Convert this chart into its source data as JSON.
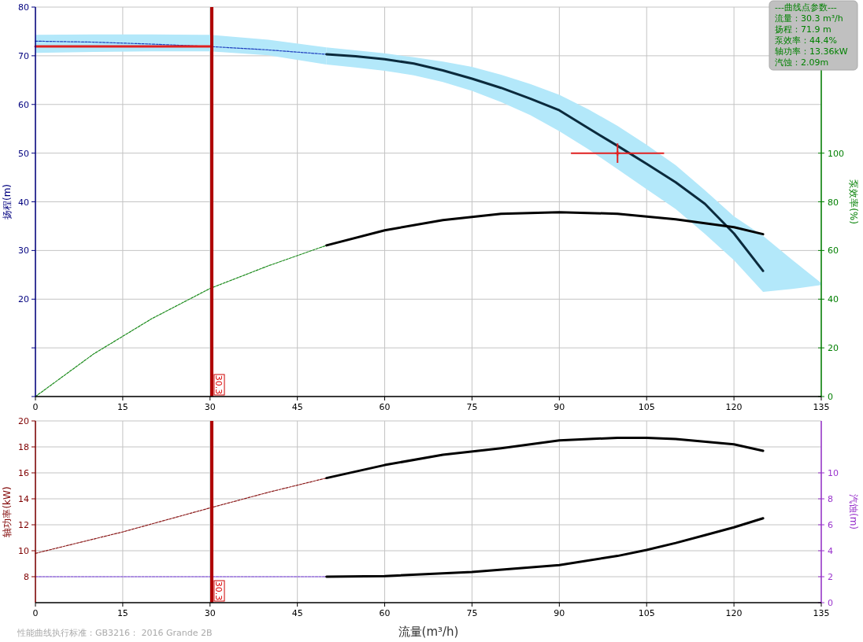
{
  "chart_data": [
    {
      "type": "line",
      "ylabel": "扬程(m)",
      "y2label": "泵效率(%)",
      "grid": true,
      "xlim": [
        0,
        135
      ],
      "xticks": [
        0,
        15,
        30,
        45,
        60,
        75,
        90,
        105,
        120,
        135
      ],
      "ylim": [
        0,
        80
      ],
      "yticks": [
        {
          "value": 0,
          "label": null
        },
        {
          "value": 10,
          "label": null
        },
        20,
        30,
        40,
        50,
        60,
        70,
        80
      ],
      "y2lim": [
        0,
        160
      ],
      "y2ticks": [
        0,
        20,
        40,
        60,
        80,
        100
      ],
      "series": [
        {
          "type": "line",
          "color": "#1f3fbf",
          "line_style": "dashed",
          "x": [
            0,
            10,
            20,
            30,
            40,
            50
          ],
          "values": [
            73.0,
            72.8,
            72.4,
            71.9,
            71.2,
            70.3
          ],
          "lower": [
            70.6,
            70.8,
            70.9,
            70.9,
            70.1,
            68.2
          ],
          "upper": [
            74.3,
            74.4,
            74.4,
            74.3,
            73.3,
            71.7
          ]
        },
        {
          "type": "line",
          "color": "#0b2a3c",
          "line_style": "solid",
          "x": [
            50,
            55,
            60,
            65,
            70,
            75,
            80,
            85,
            90,
            95,
            100,
            105,
            110,
            115,
            120,
            125,
            130,
            135
          ],
          "values": [
            70.3,
            69.9,
            69.3,
            68.4,
            67.0,
            65.3,
            63.4,
            61.2,
            58.8,
            55.1,
            51.5,
            47.8,
            44.0,
            39.6,
            33.5,
            25.8,
            null,
            null
          ],
          "lower": [
            68.2,
            67.6,
            66.9,
            66.0,
            64.6,
            62.8,
            60.5,
            57.8,
            54.5,
            50.8,
            46.7,
            42.6,
            38.5,
            33.4,
            28.0,
            21.5,
            22.1,
            22.9
          ],
          "upper": [
            71.7,
            71.1,
            70.5,
            69.7,
            68.8,
            67.7,
            66.1,
            64.2,
            62.0,
            59.0,
            55.6,
            51.7,
            47.5,
            42.4,
            37.0,
            33.0,
            28.1,
            23.3
          ]
        },
        {
          "type": "line",
          "axis": "y2",
          "color": "#1a8a1a",
          "line_style": "dashed",
          "x": [
            0,
            10,
            20,
            30,
            40,
            50
          ],
          "values": [
            0,
            17.5,
            32.0,
            44.4,
            53.7,
            62.1
          ]
        },
        {
          "type": "line",
          "axis": "y2",
          "color": "#000000",
          "line_style": "solid",
          "x": [
            50,
            60,
            70,
            80,
            90,
            100,
            110,
            120,
            125
          ],
          "values": [
            62.1,
            68.3,
            72.5,
            75.1,
            75.7,
            75.1,
            72.8,
            69.6,
            66.7
          ]
        },
        {
          "type": "line",
          "color": "#e02020",
          "line_style": "solid",
          "x": [
            0,
            30.3
          ],
          "values": [
            71.9,
            71.9
          ]
        },
        {
          "type": "scatter",
          "color": "#e02020",
          "marker": "cross",
          "x": [
            100
          ],
          "values": [
            50
          ],
          "errors": [
            2
          ],
          "xerrors": [
            8
          ]
        }
      ],
      "ref_lines": [
        {
          "axis": "x",
          "value": 30.3,
          "label": "30.3",
          "color": "#b00000"
        }
      ],
      "annotations": [
        "---曲线点参数---",
        "流量：30.3 m³/h",
        "扬程：71.9 m",
        "泵效率：44.4%",
        "轴功率：13.36kW",
        "汽蚀：2.09m"
      ]
    },
    {
      "type": "line",
      "xlabel": "流量(m³/h)",
      "ylabel": "轴功率(kW)",
      "y2label": "汽蚀(m)",
      "grid": true,
      "xlim": [
        0,
        135
      ],
      "xticks": [
        0,
        15,
        30,
        45,
        60,
        75,
        90,
        105,
        120,
        135
      ],
      "ylim": [
        6,
        20
      ],
      "yticks": [
        8,
        10,
        12,
        14,
        16,
        18,
        20
      ],
      "y2lim": [
        0,
        14
      ],
      "y2ticks": [
        0,
        2,
        4,
        6,
        8,
        10
      ],
      "series": [
        {
          "type": "line",
          "color": "#8b1a1a",
          "line_style": "dashed",
          "x": [
            0,
            15,
            30,
            40,
            50
          ],
          "values": [
            9.8,
            11.45,
            13.3,
            14.5,
            15.6
          ]
        },
        {
          "type": "line",
          "color": "#000000",
          "line_style": "solid",
          "x": [
            50,
            60,
            70,
            80,
            90,
            100,
            105,
            110,
            120,
            125
          ],
          "values": [
            15.6,
            16.6,
            17.4,
            17.9,
            18.5,
            18.7,
            18.7,
            18.6,
            18.2,
            17.7
          ]
        },
        {
          "type": "line",
          "axis": "y2",
          "color": "#7b3fe4",
          "line_style": "dashed",
          "x": [
            0,
            30,
            50
          ],
          "values": [
            2.0,
            2.0,
            2.0
          ]
        },
        {
          "type": "line",
          "axis": "y2",
          "color": "#000000",
          "line_style": "solid",
          "x": [
            50,
            60,
            75,
            90,
            100,
            105,
            110,
            115,
            120,
            125
          ],
          "values": [
            2.0,
            2.05,
            2.36,
            2.9,
            3.6,
            4.06,
            4.6,
            5.2,
            5.8,
            6.5
          ]
        }
      ],
      "ref_lines": [
        {
          "axis": "x",
          "value": 30.3,
          "label": "30.3",
          "color": "#b00000"
        }
      ],
      "annotations": [
        "性能曲线执行标准：GB3216： 2016 Grande 2B"
      ]
    }
  ]
}
